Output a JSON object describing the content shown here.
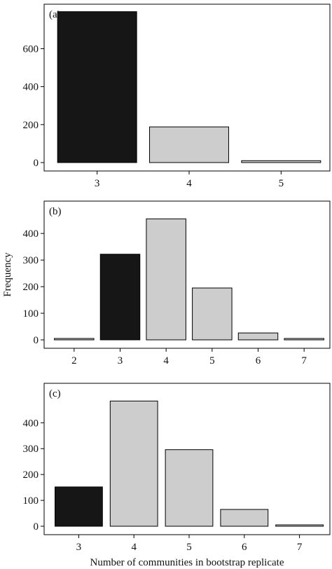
{
  "chart_data": [
    {
      "type": "bar",
      "panel_label": "(a)",
      "categories": [
        "3",
        "4",
        "5"
      ],
      "values": [
        795,
        188,
        10
      ],
      "bar_colors": [
        "#161616",
        "#cdcdcd",
        "#cdcdcd"
      ],
      "ylim": [
        0,
        790
      ],
      "yticks": [
        0,
        200,
        400,
        600
      ],
      "xlabel": "",
      "ylabel": ""
    },
    {
      "type": "bar",
      "panel_label": "(b)",
      "categories": [
        "2",
        "3",
        "4",
        "5",
        "6",
        "7"
      ],
      "values": [
        1,
        322,
        455,
        195,
        26,
        3
      ],
      "bar_colors": [
        "#cdcdcd",
        "#161616",
        "#cdcdcd",
        "#cdcdcd",
        "#cdcdcd",
        "#cdcdcd"
      ],
      "ylim": [
        0,
        490
      ],
      "yticks": [
        0,
        100,
        200,
        300,
        400
      ],
      "xlabel": "",
      "ylabel": "Frequency"
    },
    {
      "type": "bar",
      "panel_label": "(c)",
      "categories": [
        "3",
        "4",
        "5",
        "6",
        "7"
      ],
      "values": [
        152,
        484,
        296,
        65,
        3
      ],
      "bar_colors": [
        "#161616",
        "#cdcdcd",
        "#cdcdcd",
        "#cdcdcd",
        "#cdcdcd"
      ],
      "ylim": [
        0,
        520
      ],
      "yticks": [
        0,
        100,
        200,
        300,
        400
      ],
      "xlabel": "Number of communities in bootstrap replicate",
      "ylabel": ""
    }
  ]
}
